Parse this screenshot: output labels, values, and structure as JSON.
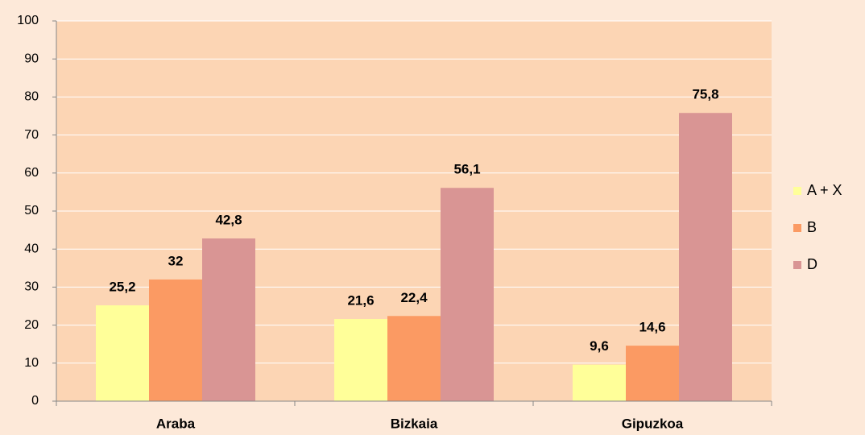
{
  "chart_data": {
    "type": "bar",
    "categories": [
      "Araba",
      "Bizkaia",
      "Gipuzkoa"
    ],
    "series": [
      {
        "name": "A + X",
        "color": "#ffff99",
        "values": [
          25.2,
          21.6,
          9.6
        ],
        "value_labels": [
          "25,2",
          "21,6",
          "9,6"
        ]
      },
      {
        "name": "B",
        "color": "#fb9a63",
        "values": [
          32,
          22.4,
          14.6
        ],
        "value_labels": [
          "32",
          "22,4",
          "14,6"
        ]
      },
      {
        "name": "D",
        "color": "#d99594",
        "values": [
          42.8,
          56.1,
          75.8
        ],
        "value_labels": [
          "42,8",
          "56,1",
          "75,8"
        ]
      }
    ],
    "ylim": [
      0,
      100
    ],
    "yticks": [
      0,
      10,
      20,
      30,
      40,
      50,
      60,
      70,
      80,
      90,
      100
    ],
    "grid": true,
    "legend": "right"
  }
}
